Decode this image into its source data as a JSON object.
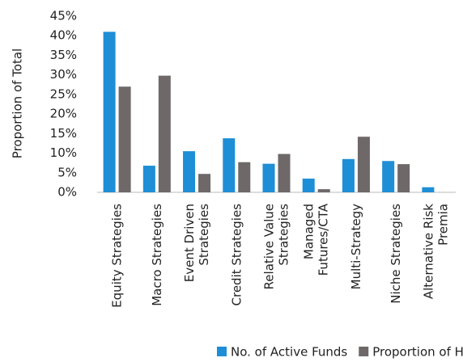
{
  "chart_data": {
    "type": "bar",
    "y_label": "Proportion of Total",
    "categories": [
      "Equity Strategies",
      "Macro Strategies",
      "Event Driven\nStrategies",
      "Credit Strategies",
      "Relative Value\nStrategies",
      "Managed\nFutures/CTA",
      "Multi-Strategy",
      "Niche Strategies",
      "Alternative Risk\nPremia"
    ],
    "series": [
      {
        "name": "No. of Active Funds",
        "color": "#1e8ed6",
        "values": [
          41,
          6.8,
          10.5,
          13.8,
          7.3,
          3.5,
          8.5,
          8.0,
          1.3
        ]
      },
      {
        "name": "Proportion of HF AUM",
        "color": "#6e6868",
        "values": [
          27,
          29.8,
          4.7,
          7.7,
          9.8,
          0.8,
          14.2,
          7.2,
          0
        ]
      }
    ],
    "ylim": [
      0,
      45
    ],
    "yticks": [
      {
        "value": 0,
        "label": "0%"
      },
      {
        "value": 5,
        "label": "5%"
      },
      {
        "value": 10,
        "label": "10%"
      },
      {
        "value": 15,
        "label": "15%"
      },
      {
        "value": 20,
        "label": "20%"
      },
      {
        "value": 25,
        "label": "25%"
      },
      {
        "value": 30,
        "label": "30%"
      },
      {
        "value": 35,
        "label": "35%"
      },
      {
        "value": 40,
        "label": "40%"
      },
      {
        "value": 45,
        "label": "45%"
      }
    ],
    "grid": false,
    "legend": "bottom"
  }
}
